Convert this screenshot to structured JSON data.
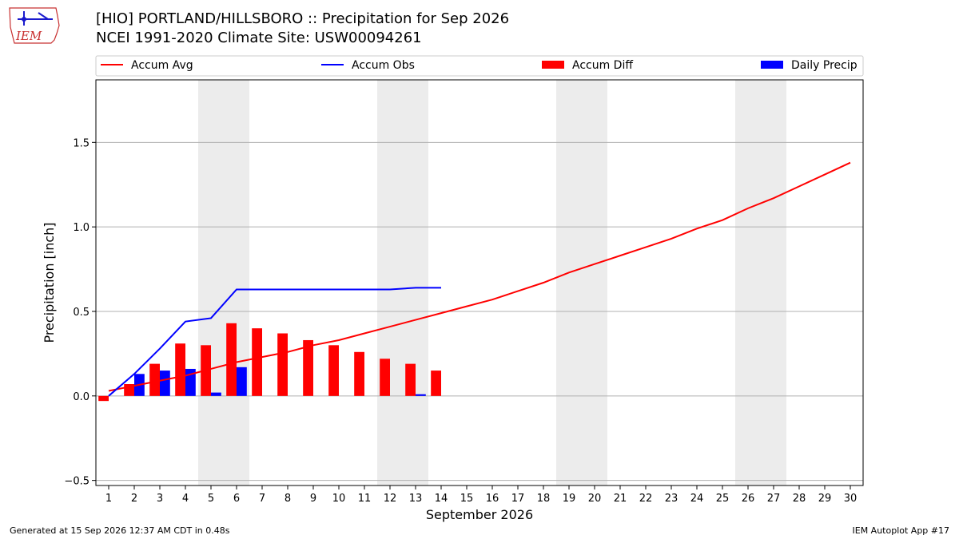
{
  "header": {
    "title": "[HIO] PORTLAND/HILLSBORO :: Precipitation for Sep 2026",
    "subtitle": "NCEI 1991-2020 Climate Site: USW00094261",
    "logo_text": "IEM"
  },
  "footer": {
    "left": "Generated at 15 Sep 2026 12:37 AM CDT in 0.48s",
    "right": "IEM Autoplot App #17"
  },
  "chart_data": {
    "type": "bar",
    "xlabel": "September 2026",
    "ylabel": "Precipitation [inch]",
    "ylim": [
      -0.53,
      1.87
    ],
    "xlim": [
      0.5,
      30.5
    ],
    "yticks": [
      -0.5,
      0.0,
      0.5,
      1.0,
      1.5
    ],
    "ytick_labels": [
      "−0.5",
      "0.0",
      "0.5",
      "1.0",
      "1.5"
    ],
    "days": [
      1,
      2,
      3,
      4,
      5,
      6,
      7,
      8,
      9,
      10,
      11,
      12,
      13,
      14,
      15,
      16,
      17,
      18,
      19,
      20,
      21,
      22,
      23,
      24,
      25,
      26,
      27,
      28,
      29,
      30
    ],
    "weekend_spans": [
      [
        4.5,
        6.5
      ],
      [
        11.5,
        13.5
      ],
      [
        18.5,
        20.5
      ],
      [
        25.5,
        27.5
      ]
    ],
    "grid": "horizontal",
    "legend_position": "top",
    "series": [
      {
        "name": "Accum Avg",
        "kind": "line",
        "color": "#ff0000",
        "x": [
          1,
          2,
          3,
          4,
          5,
          6,
          7,
          8,
          9,
          10,
          11,
          12,
          13,
          14,
          15,
          16,
          17,
          18,
          19,
          20,
          21,
          22,
          23,
          24,
          25,
          26,
          27,
          28,
          29,
          30
        ],
        "values": [
          0.03,
          0.06,
          0.09,
          0.12,
          0.16,
          0.2,
          0.23,
          0.26,
          0.3,
          0.33,
          0.37,
          0.41,
          0.45,
          0.49,
          0.53,
          0.57,
          0.62,
          0.67,
          0.73,
          0.78,
          0.83,
          0.88,
          0.93,
          0.99,
          1.04,
          1.11,
          1.17,
          1.24,
          1.31,
          1.38
        ]
      },
      {
        "name": "Accum Obs",
        "kind": "line",
        "color": "#0000ff",
        "x": [
          1,
          2,
          3,
          4,
          5,
          6,
          7,
          8,
          9,
          10,
          11,
          12,
          13,
          14
        ],
        "values": [
          0.0,
          0.13,
          0.28,
          0.44,
          0.46,
          0.63,
          0.63,
          0.63,
          0.63,
          0.63,
          0.63,
          0.63,
          0.64,
          0.64
        ]
      },
      {
        "name": "Accum Diff",
        "kind": "bar",
        "color": "#ff0000",
        "x": [
          1,
          2,
          3,
          4,
          5,
          6,
          7,
          8,
          9,
          10,
          11,
          12,
          13,
          14
        ],
        "values": [
          -0.03,
          0.07,
          0.19,
          0.31,
          0.3,
          0.43,
          0.4,
          0.37,
          0.33,
          0.3,
          0.26,
          0.22,
          0.19,
          0.15
        ]
      },
      {
        "name": "Daily Precip",
        "kind": "bar",
        "color": "#0000ff",
        "x": [
          1,
          2,
          3,
          4,
          5,
          6,
          7,
          8,
          9,
          10,
          11,
          12,
          13,
          14
        ],
        "values": [
          0.0,
          0.13,
          0.15,
          0.16,
          0.02,
          0.17,
          0.0,
          0.0,
          0.0,
          0.0,
          0.0,
          0.0,
          0.01,
          0.0
        ]
      }
    ]
  }
}
